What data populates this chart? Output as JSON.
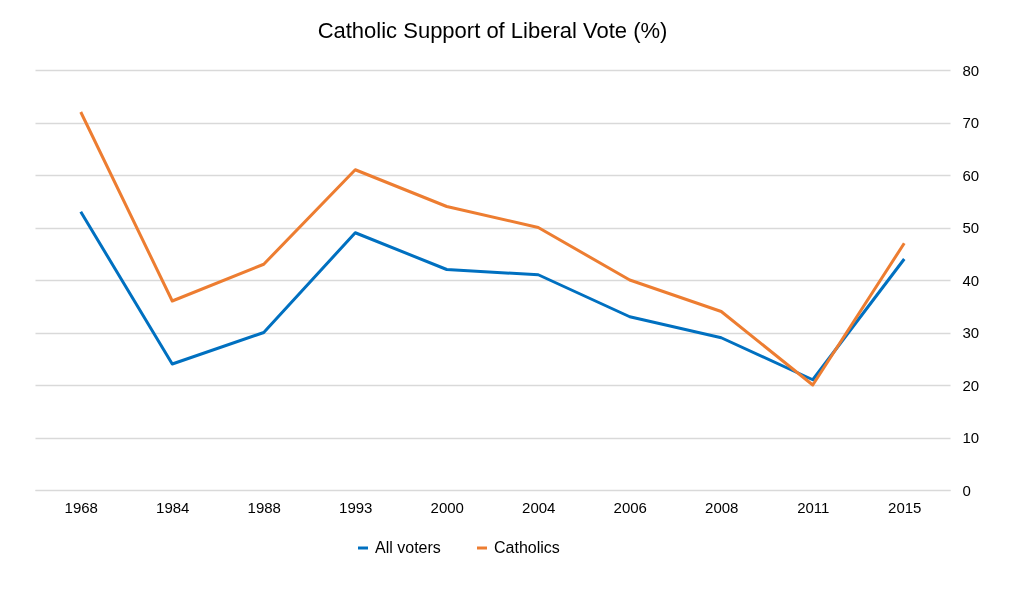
{
  "chart_data": {
    "type": "line",
    "title": "Catholic Support of Liberal Vote (%)",
    "categories": [
      "1968",
      "1984",
      "1988",
      "1993",
      "2000",
      "2004",
      "2006",
      "2008",
      "2011",
      "2015"
    ],
    "series": [
      {
        "name": "All voters",
        "color": "#0070c0",
        "values": [
          53,
          24,
          30,
          49,
          42,
          41,
          33,
          29,
          21,
          44
        ]
      },
      {
        "name": "Catholics",
        "color": "#ed7d31",
        "values": [
          72,
          36,
          43,
          61,
          54,
          50,
          40,
          34,
          20,
          47
        ]
      }
    ],
    "ylim": [
      0,
      80
    ],
    "yticks": [
      0,
      10,
      20,
      30,
      40,
      50,
      60,
      70,
      80
    ],
    "grid": "y",
    "legend": "bottom",
    "marker": "none",
    "line_style": "solid"
  }
}
